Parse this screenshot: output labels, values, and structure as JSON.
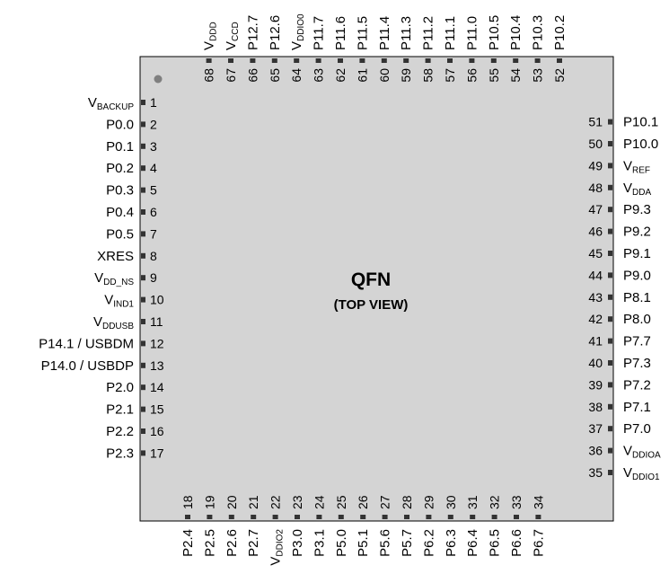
{
  "package": {
    "title": "QFN",
    "subtitle": "(TOP VIEW)",
    "body_color": "#d4d4d4",
    "pad_color": "#333333",
    "pin1_marker_color": "#7f7f7f"
  },
  "left_pins": [
    {
      "num": "1",
      "name": "V",
      "sub": "BACKUP"
    },
    {
      "num": "2",
      "name": "P0.0"
    },
    {
      "num": "3",
      "name": "P0.1"
    },
    {
      "num": "4",
      "name": "P0.2"
    },
    {
      "num": "5",
      "name": "P0.3"
    },
    {
      "num": "6",
      "name": "P0.4"
    },
    {
      "num": "7",
      "name": "P0.5"
    },
    {
      "num": "8",
      "name": "XRES"
    },
    {
      "num": "9",
      "name": "V",
      "sub": "DD_NS"
    },
    {
      "num": "10",
      "name": "V",
      "sub": "IND1"
    },
    {
      "num": "11",
      "name": "V",
      "sub": "DDUSB"
    },
    {
      "num": "12",
      "name": "P14.1 / USBDM"
    },
    {
      "num": "13",
      "name": "P14.0 / USBDP"
    },
    {
      "num": "14",
      "name": "P2.0"
    },
    {
      "num": "15",
      "name": "P2.1"
    },
    {
      "num": "16",
      "name": "P2.2"
    },
    {
      "num": "17",
      "name": "P2.3"
    }
  ],
  "bottom_pins": [
    {
      "num": "18",
      "name": "P2.4"
    },
    {
      "num": "19",
      "name": "P2.5"
    },
    {
      "num": "20",
      "name": "P2.6"
    },
    {
      "num": "21",
      "name": "P2.7"
    },
    {
      "num": "22",
      "name": "V",
      "sub": "DDIO2"
    },
    {
      "num": "23",
      "name": "P3.0"
    },
    {
      "num": "24",
      "name": "P3.1"
    },
    {
      "num": "25",
      "name": "P5.0"
    },
    {
      "num": "26",
      "name": "P5.1"
    },
    {
      "num": "27",
      "name": "P5.6"
    },
    {
      "num": "28",
      "name": "P5.7"
    },
    {
      "num": "29",
      "name": "P6.2"
    },
    {
      "num": "30",
      "name": "P6.3"
    },
    {
      "num": "31",
      "name": "P6.4"
    },
    {
      "num": "32",
      "name": "P6.5"
    },
    {
      "num": "33",
      "name": "P6.6"
    },
    {
      "num": "34",
      "name": "P6.7"
    }
  ],
  "right_pins": [
    {
      "num": "35",
      "name": "V",
      "sub": "DDIO1"
    },
    {
      "num": "36",
      "name": "V",
      "sub": "DDIOA"
    },
    {
      "num": "37",
      "name": "P7.0"
    },
    {
      "num": "38",
      "name": "P7.1"
    },
    {
      "num": "39",
      "name": "P7.2"
    },
    {
      "num": "40",
      "name": "P7.3"
    },
    {
      "num": "41",
      "name": "P7.7"
    },
    {
      "num": "42",
      "name": "P8.0"
    },
    {
      "num": "43",
      "name": "P8.1"
    },
    {
      "num": "44",
      "name": "P9.0"
    },
    {
      "num": "45",
      "name": "P9.1"
    },
    {
      "num": "46",
      "name": "P9.2"
    },
    {
      "num": "47",
      "name": "P9.3"
    },
    {
      "num": "48",
      "name": "V",
      "sub": "DDA"
    },
    {
      "num": "49",
      "name": "V",
      "sub": "REF"
    },
    {
      "num": "50",
      "name": "P10.0"
    },
    {
      "num": "51",
      "name": "P10.1"
    }
  ],
  "top_pins": [
    {
      "num": "52",
      "name": "P10.2"
    },
    {
      "num": "53",
      "name": "P10.3"
    },
    {
      "num": "54",
      "name": "P10.4"
    },
    {
      "num": "55",
      "name": "P10.5"
    },
    {
      "num": "56",
      "name": "P11.0"
    },
    {
      "num": "57",
      "name": "P11.1"
    },
    {
      "num": "58",
      "name": "P11.2"
    },
    {
      "num": "59",
      "name": "P11.3"
    },
    {
      "num": "60",
      "name": "P11.4"
    },
    {
      "num": "61",
      "name": "P11.5"
    },
    {
      "num": "62",
      "name": "P11.6"
    },
    {
      "num": "63",
      "name": "P11.7"
    },
    {
      "num": "64",
      "name": "V",
      "sub": "DDIO0"
    },
    {
      "num": "65",
      "name": "P12.6"
    },
    {
      "num": "66",
      "name": "P12.7"
    },
    {
      "num": "67",
      "name": "V",
      "sub": "CCD"
    },
    {
      "num": "68",
      "name": "V",
      "sub": "DDD"
    }
  ]
}
